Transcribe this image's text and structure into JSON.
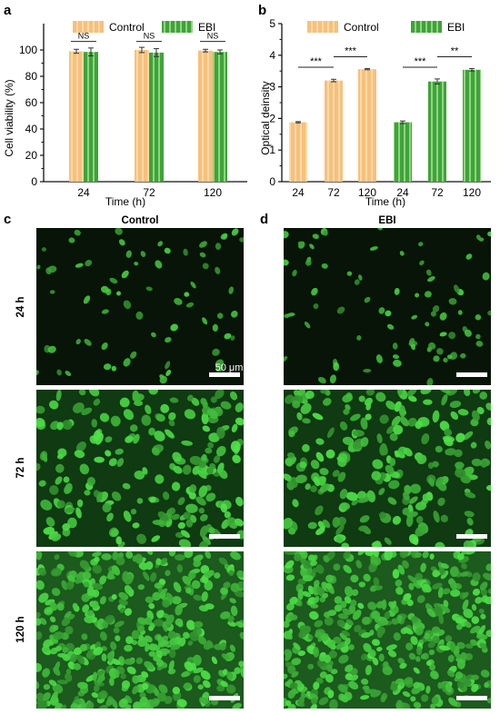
{
  "panel_letters": {
    "a": "a",
    "b": "b",
    "c": "c",
    "d": "d"
  },
  "colors": {
    "control": "#f5b56a",
    "control_light": "#fbd9a8",
    "ebi": "#3fa33a",
    "ebi_light": "#8fd47f",
    "micro_bg": "#0b1a0c",
    "cell": "#47b547",
    "scalebar": "#ffffff"
  },
  "chart_data": [
    {
      "panel": "a",
      "type": "bar",
      "categories": [
        "24",
        "72",
        "120"
      ],
      "series": [
        {
          "name": "Control",
          "values": [
            99,
            100,
            99.5
          ],
          "errors": [
            1.5,
            2,
            1
          ]
        },
        {
          "name": "EBI",
          "values": [
            98.5,
            98,
            98.5
          ],
          "errors": [
            3,
            3,
            1.5
          ]
        }
      ],
      "xlabel": "Time (h)",
      "ylabel": "Cell viability (%)",
      "ylim": [
        0,
        120
      ],
      "yticks": [
        0,
        20,
        40,
        60,
        80,
        100
      ],
      "significance": [
        {
          "category": "24",
          "label": "NS"
        },
        {
          "category": "72",
          "label": "NS"
        },
        {
          "category": "120",
          "label": "NS"
        }
      ],
      "legend": "top",
      "grid": false
    },
    {
      "panel": "b",
      "type": "bar",
      "categories": [
        "24",
        "72",
        "120",
        "24",
        "72",
        "120"
      ],
      "series": [
        {
          "name": "Control",
          "values": [
            1.88,
            3.2,
            3.56,
            null,
            null,
            null
          ],
          "errors": [
            0.02,
            0.04,
            0.02,
            null,
            null,
            null
          ]
        },
        {
          "name": "EBI",
          "values": [
            null,
            null,
            null,
            1.88,
            3.17,
            3.54
          ],
          "errors": [
            null,
            null,
            null,
            0.04,
            0.08,
            0.04
          ]
        }
      ],
      "xlabel": "Time (h)",
      "ylabel": "Optical deinsity",
      "ylim": [
        0,
        5
      ],
      "yticks": [
        0,
        1,
        2,
        3,
        4,
        5
      ],
      "significance": [
        {
          "from": 0,
          "to": 1,
          "label": "***"
        },
        {
          "from": 1,
          "to": 2,
          "label": "***"
        },
        {
          "from": 3,
          "to": 4,
          "label": "***"
        },
        {
          "from": 4,
          "to": 5,
          "label": "**"
        }
      ],
      "legend": "top",
      "grid": false
    }
  ],
  "micrographs": {
    "col_titles": [
      "Control",
      "EBI"
    ],
    "row_labels": [
      "24 h",
      "72 h",
      "120 h"
    ],
    "scale_bar_label": "50 μm"
  }
}
